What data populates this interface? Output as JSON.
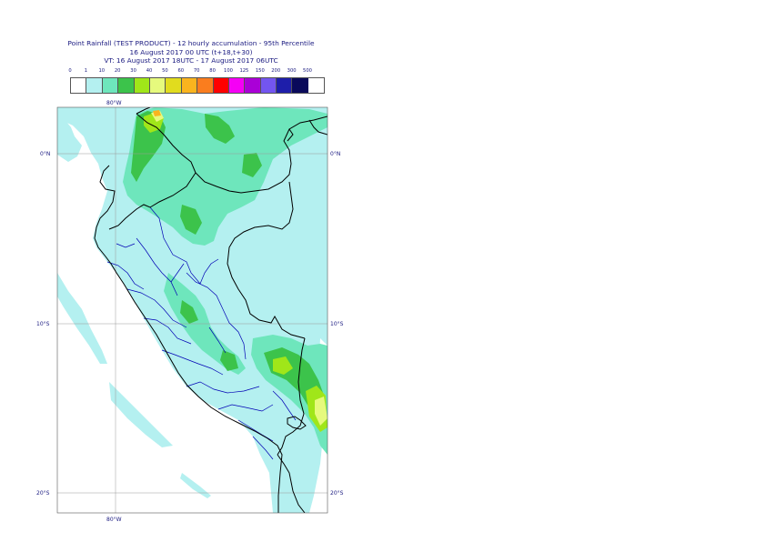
{
  "header": {
    "title_line1": "Point Rainfall (TEST PRODUCT) - 12 hourly accumulation - 95th Percentile",
    "title_line2": "16 August 2017 00 UTC (t+18,t+30)",
    "title_line3": "VT: 16 August 2017 18UTC - 17 August 2017 06UTC"
  },
  "legend": {
    "thresholds": [
      "0",
      "1",
      "10",
      "20",
      "30",
      "40",
      "50",
      "60",
      "70",
      "80",
      "100",
      "125",
      "150",
      "200",
      "300",
      "500"
    ],
    "colors": [
      "#ffffff",
      "#b4f0f0",
      "#6ee6bc",
      "#3cc34b",
      "#a0e619",
      "#e6fa7d",
      "#e1dc1e",
      "#fab41e",
      "#fa7d1e",
      "#ff0000",
      "#f500f5",
      "#aa00d7",
      "#7355f0",
      "#1e1eaa",
      "#0a0a5a"
    ]
  },
  "map": {
    "lat_labels": [
      "0°N",
      "10°S",
      "20°S"
    ],
    "lon_labels": [
      "80°W"
    ],
    "colors": {
      "light_rain": "#b4f0f0",
      "moderate_rain": "#6ee6bc",
      "heavy_rain": "#3cc34b",
      "very_heavy": "#a0e619",
      "extreme": "#e6fa7d",
      "peak": "#fab41e",
      "country_border": "#000000",
      "region_border": "#0000b4",
      "graticule": "#9a9a9a"
    }
  }
}
